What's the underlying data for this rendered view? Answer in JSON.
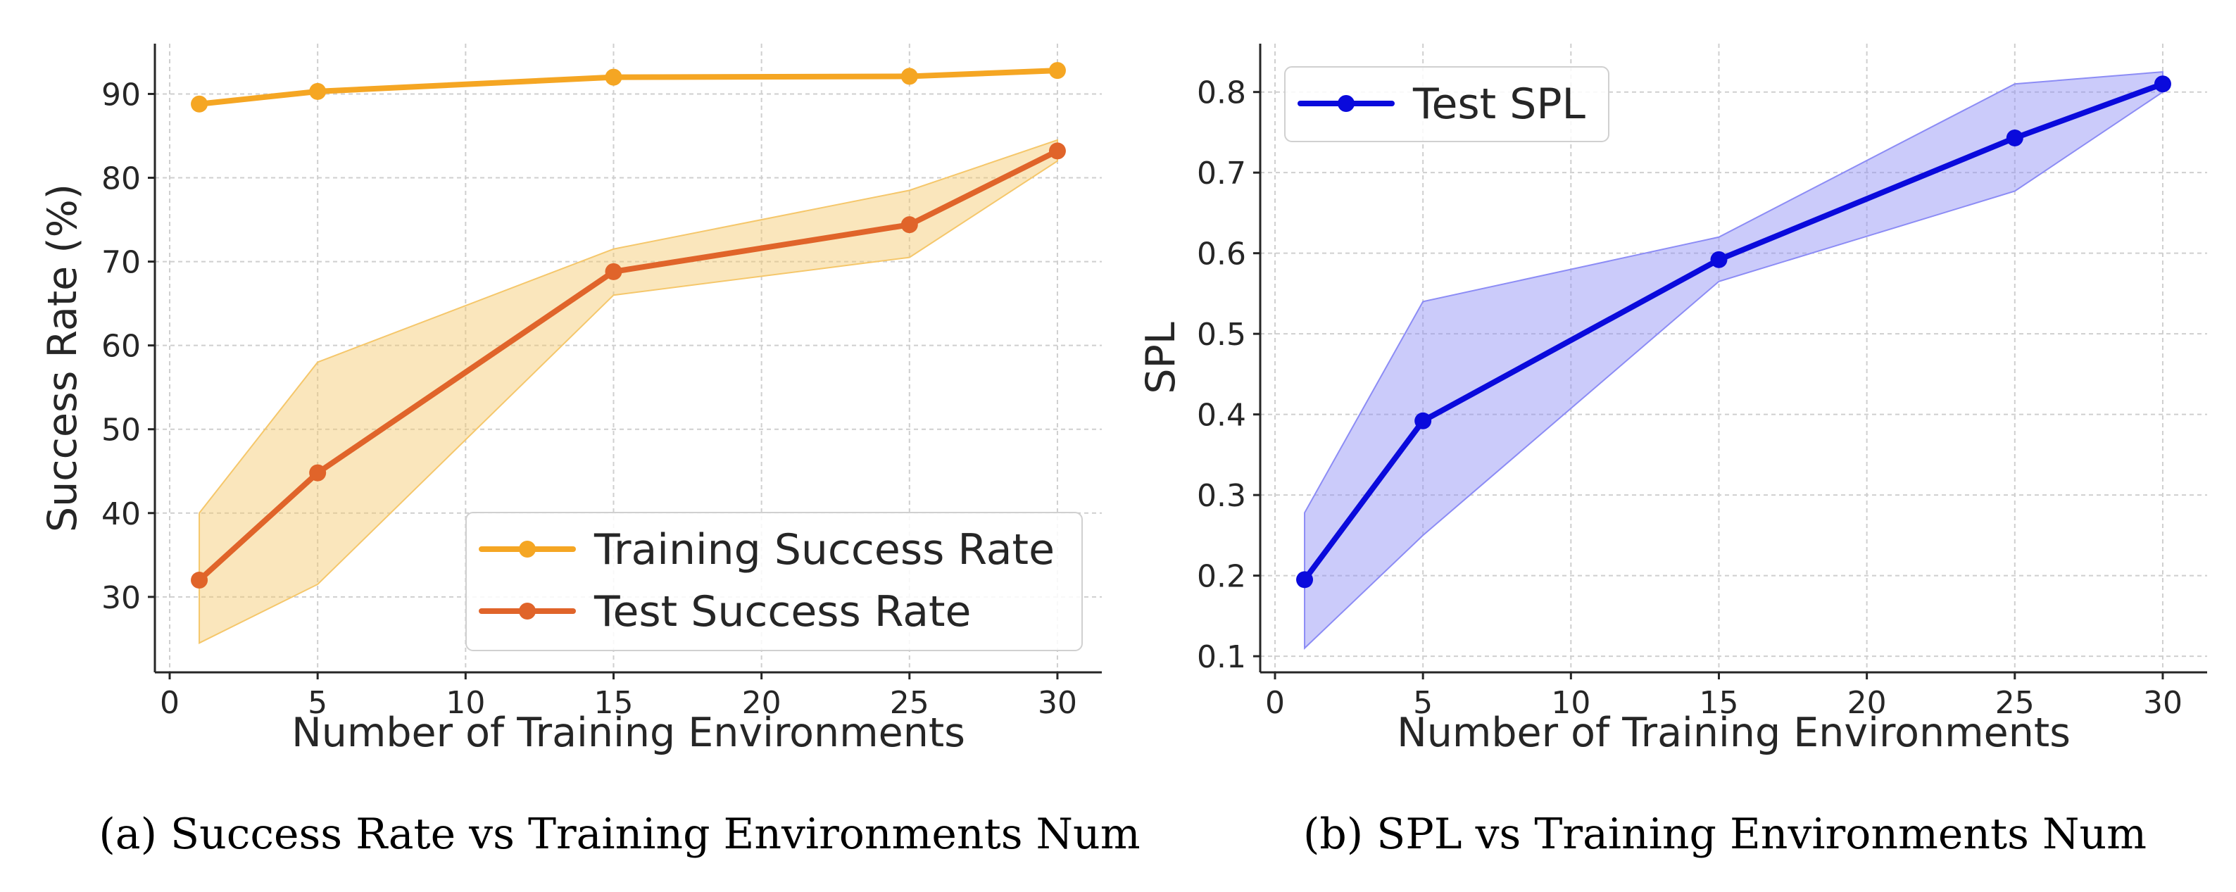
{
  "chart_data": [
    {
      "type": "line",
      "caption": "(a) Success Rate vs Training Environments Num",
      "xlabel": "Number of Training Environments",
      "ylabel": "Success Rate (%)",
      "xlim": [
        -0.5,
        31.5
      ],
      "ylim": [
        21,
        96
      ],
      "xticks": [
        0,
        5,
        10,
        15,
        20,
        25,
        30
      ],
      "yticks": [
        30,
        40,
        50,
        60,
        70,
        80,
        90
      ],
      "grid": true,
      "legend_position": "lower-right",
      "x": [
        1,
        5,
        15,
        25,
        30
      ],
      "series": [
        {
          "name": "Training Success Rate",
          "color": "#F5A623",
          "values": [
            88.8,
            90.3,
            92.0,
            92.1,
            92.8
          ]
        },
        {
          "name": "Test Success Rate",
          "color": "#E0642A",
          "values": [
            32.0,
            44.8,
            68.8,
            74.4,
            83.2
          ],
          "band": {
            "color": "#F5C76B",
            "lower": [
              24.5,
              31.5,
              66.0,
              70.5,
              82.0
            ],
            "upper": [
              40.0,
              58.0,
              71.5,
              78.5,
              84.5
            ]
          }
        }
      ]
    },
    {
      "type": "line",
      "caption": "(b) SPL vs Training Environments Num",
      "xlabel": "Number of Training Environments",
      "ylabel": "SPL",
      "xlim": [
        -0.5,
        31.5
      ],
      "ylim": [
        0.08,
        0.86
      ],
      "xticks": [
        0,
        5,
        10,
        15,
        20,
        25,
        30
      ],
      "yticks": [
        0.1,
        0.2,
        0.3,
        0.4,
        0.5,
        0.6,
        0.7,
        0.8
      ],
      "grid": true,
      "legend_position": "top-left",
      "x": [
        1,
        5,
        15,
        25,
        30
      ],
      "series": [
        {
          "name": "Test SPL",
          "color": "#0A0ADC",
          "values": [
            0.195,
            0.392,
            0.592,
            0.743,
            0.81
          ],
          "band": {
            "color": "#8C8CF5",
            "lower": [
              0.11,
              0.25,
              0.565,
              0.677,
              0.8
            ],
            "upper": [
              0.278,
              0.54,
              0.62,
              0.81,
              0.825
            ]
          }
        }
      ]
    }
  ]
}
